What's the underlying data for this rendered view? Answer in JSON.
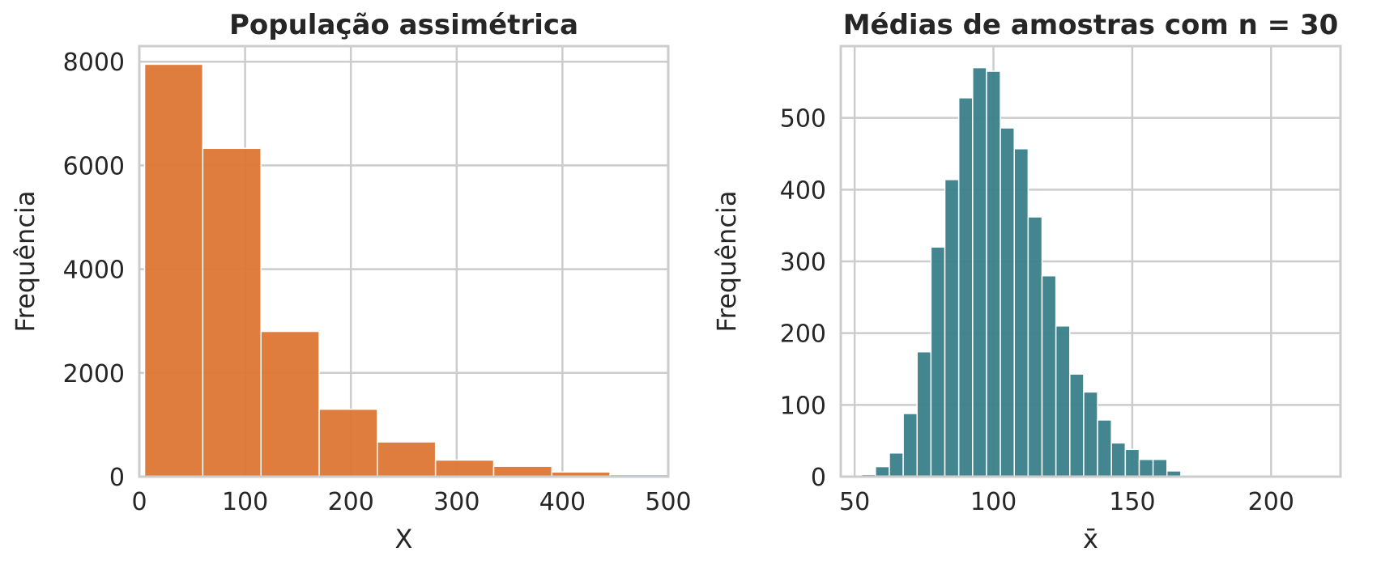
{
  "chart_data": [
    {
      "type": "bar",
      "title": "População assimétrica",
      "xlabel": "X",
      "ylabel": "Frequência",
      "color": "#dd7634",
      "xlim": [
        0,
        500
      ],
      "ylim": [
        0,
        8300
      ],
      "xticks": [
        0,
        100,
        200,
        300,
        400,
        500
      ],
      "yticks": [
        0,
        2000,
        4000,
        6000,
        8000
      ],
      "grid": true,
      "bins": [
        {
          "x0": 5,
          "x1": 60,
          "count": 7950
        },
        {
          "x0": 60,
          "x1": 115,
          "count": 6330
        },
        {
          "x0": 115,
          "x1": 170,
          "count": 2800
        },
        {
          "x0": 170,
          "x1": 225,
          "count": 1300
        },
        {
          "x0": 225,
          "x1": 280,
          "count": 670
        },
        {
          "x0": 280,
          "x1": 335,
          "count": 320
        },
        {
          "x0": 335,
          "x1": 390,
          "count": 200
        },
        {
          "x0": 390,
          "x1": 445,
          "count": 90
        },
        {
          "x0": 445,
          "x1": 500,
          "count": 40
        }
      ]
    },
    {
      "type": "bar",
      "title": "Médias de amostras com n = 30",
      "xlabel": "x̄",
      "ylabel": "Frequência",
      "color": "#3a7f8a",
      "xlim": [
        45,
        225
      ],
      "ylim": [
        0,
        600
      ],
      "xticks": [
        50,
        100,
        150,
        200
      ],
      "yticks": [
        0,
        100,
        200,
        300,
        400,
        500
      ],
      "grid": true,
      "bins": [
        {
          "x0": 52.5,
          "x1": 57.5,
          "count": 3
        },
        {
          "x0": 57.5,
          "x1": 62.5,
          "count": 14
        },
        {
          "x0": 62.5,
          "x1": 67.5,
          "count": 33
        },
        {
          "x0": 67.5,
          "x1": 72.5,
          "count": 88
        },
        {
          "x0": 72.5,
          "x1": 77.5,
          "count": 174
        },
        {
          "x0": 77.5,
          "x1": 82.5,
          "count": 320
        },
        {
          "x0": 82.5,
          "x1": 87.5,
          "count": 414
        },
        {
          "x0": 87.5,
          "x1": 92.5,
          "count": 528
        },
        {
          "x0": 92.5,
          "x1": 97.5,
          "count": 570
        },
        {
          "x0": 97.5,
          "x1": 102.5,
          "count": 565
        },
        {
          "x0": 102.5,
          "x1": 107.5,
          "count": 486
        },
        {
          "x0": 107.5,
          "x1": 112.5,
          "count": 457
        },
        {
          "x0": 112.5,
          "x1": 117.5,
          "count": 362
        },
        {
          "x0": 117.5,
          "x1": 122.5,
          "count": 280
        },
        {
          "x0": 122.5,
          "x1": 127.5,
          "count": 210
        },
        {
          "x0": 127.5,
          "x1": 132.5,
          "count": 143
        },
        {
          "x0": 132.5,
          "x1": 137.5,
          "count": 118
        },
        {
          "x0": 137.5,
          "x1": 142.5,
          "count": 79
        },
        {
          "x0": 142.5,
          "x1": 147.5,
          "count": 47
        },
        {
          "x0": 147.5,
          "x1": 152.5,
          "count": 38
        },
        {
          "x0": 152.5,
          "x1": 157.5,
          "count": 24
        },
        {
          "x0": 157.5,
          "x1": 162.5,
          "count": 24
        },
        {
          "x0": 162.5,
          "x1": 167.5,
          "count": 8
        },
        {
          "x0": 167.5,
          "x1": 172.5,
          "count": 2
        },
        {
          "x0": 172.5,
          "x1": 177.5,
          "count": 1
        },
        {
          "x0": 177.5,
          "x1": 182.5,
          "count": 1
        },
        {
          "x0": 182.5,
          "x1": 187.5,
          "count": 1
        },
        {
          "x0": 187.5,
          "x1": 192.5,
          "count": 1
        }
      ]
    }
  ]
}
